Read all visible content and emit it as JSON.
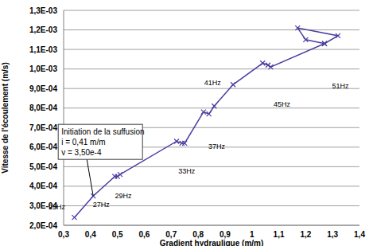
{
  "chart_data": {
    "type": "line",
    "x_label": "Gradient hydraulique (m/m)",
    "y_label": "Vitesse de l'écoulement (m/s)",
    "x": [
      0.34,
      0.41,
      0.49,
      0.5,
      0.51,
      0.72,
      0.74,
      0.75,
      0.82,
      0.84,
      0.86,
      0.93,
      1.04,
      1.06,
      1.07,
      1.27,
      1.2,
      1.17,
      1.32,
      1.27
    ],
    "values": [
      0.00024,
      0.00035,
      0.00045,
      0.00045,
      0.00046,
      0.00063,
      0.00062,
      0.00062,
      0.00078,
      0.00077,
      0.00081,
      0.00092,
      0.00103,
      0.00102,
      0.00101,
      0.00113,
      0.00115,
      0.00121,
      0.00117,
      0.00113
    ],
    "color": "#4b3fa0",
    "marker": "x",
    "grid": true,
    "xlim": [
      0.3,
      1.4
    ],
    "xticks": [
      {
        "value": 0.3,
        "label": "0,3"
      },
      {
        "value": 0.4,
        "label": "0,4"
      },
      {
        "value": 0.5,
        "label": "0,5"
      },
      {
        "value": 0.6,
        "label": "0,6"
      },
      {
        "value": 0.7,
        "label": "0,7"
      },
      {
        "value": 0.8,
        "label": "0,8"
      },
      {
        "value": 0.9,
        "label": "0,9"
      },
      {
        "value": 1,
        "label": "1"
      },
      {
        "value": 1.1,
        "label": "1,1"
      },
      {
        "value": 1.2,
        "label": "1,2"
      },
      {
        "value": 1.3,
        "label": "1,3"
      },
      {
        "value": 1.4,
        "label": "1,4"
      }
    ],
    "ylim": [
      0.0002,
      0.0013
    ],
    "yticks": [
      {
        "value": 0.0002,
        "label": "2,0E-04"
      },
      {
        "value": 0.0003,
        "label": "3,0E-04"
      },
      {
        "value": 0.0004,
        "label": "4,0E-04"
      },
      {
        "value": 0.0005,
        "label": "5,0E-04"
      },
      {
        "value": 0.0006,
        "label": "6,0E-04"
      },
      {
        "value": 0.0007,
        "label": "7,0E-04"
      },
      {
        "value": 0.0008,
        "label": "8,0E-04"
      },
      {
        "value": 0.0009,
        "label": "9,0E-04"
      },
      {
        "value": 0.001,
        "label": "1,0E-03"
      },
      {
        "value": 0.0011,
        "label": "1,1E-03"
      },
      {
        "value": 0.0012,
        "label": "1,2E-03"
      },
      {
        "value": 0.0013,
        "label": "1,3E-03"
      }
    ],
    "annotations": [
      {
        "text": "25Hz",
        "x": 0.34,
        "y": 0.00024
      },
      {
        "text": "27Hz",
        "x": 0.41,
        "y": 0.00035
      },
      {
        "text": "29Hz",
        "x": 0.51,
        "y": 0.00046
      },
      {
        "text": "33Hz",
        "x": 0.74,
        "y": 0.00062
      },
      {
        "text": "37Hz",
        "x": 0.84,
        "y": 0.00077
      },
      {
        "text": "41Hz",
        "x": 0.86,
        "y": 0.00081
      },
      {
        "text": "45Hz",
        "x": 1.07,
        "y": 0.00101
      },
      {
        "text": "51Hz",
        "x": 1.27,
        "y": 0.00113
      }
    ],
    "callout": {
      "text": [
        "Initiation de la suffusion",
        "i = 0,41 m/m",
        "v = 3,50e-4"
      ],
      "x": 0.41,
      "y": 0.00035
    }
  }
}
